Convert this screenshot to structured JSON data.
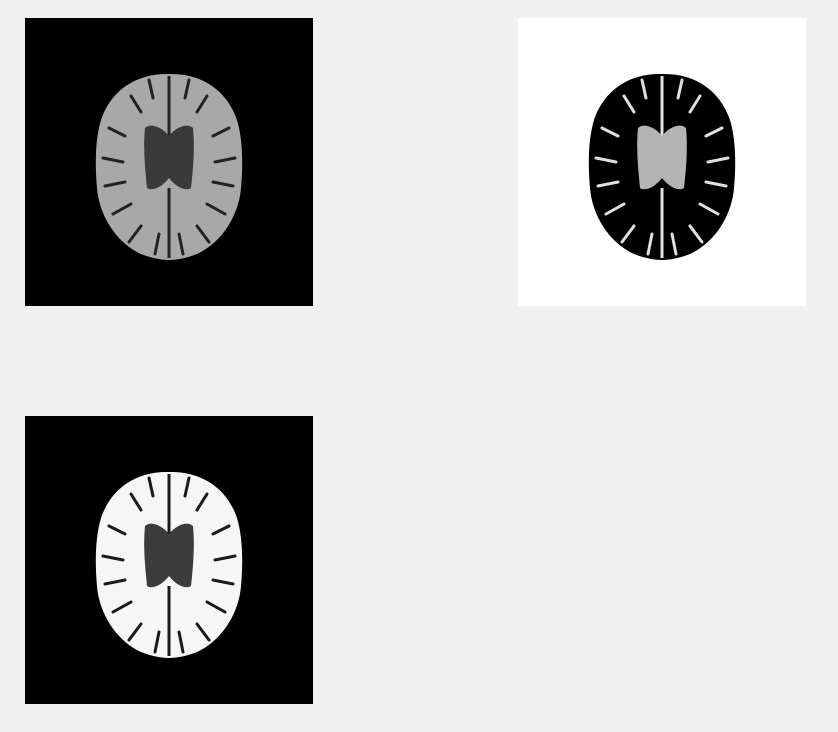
{
  "figure": {
    "background_color": "#f0f0f0",
    "panels": [
      {
        "id": "original",
        "content": "axial-brain-mri-slice",
        "background": "#000000",
        "tissue_color": "#a8a8a8",
        "ventricle_color": "#3a3a3a",
        "sulci_color": "#222222"
      },
      {
        "id": "complement",
        "content": "axial-brain-mri-slice-inverted",
        "background": "#ffffff",
        "tissue_color": "#000000",
        "ventricle_color": "#b4b4b4",
        "sulci_color": "#e0e0e0"
      },
      {
        "id": "enhanced",
        "content": "axial-brain-mri-slice-contrast-enhanced",
        "background": "#000000",
        "tissue_color": "#f6f6f6",
        "ventricle_color": "#3c3c3c",
        "sulci_color": "#1a1a1a"
      }
    ]
  }
}
